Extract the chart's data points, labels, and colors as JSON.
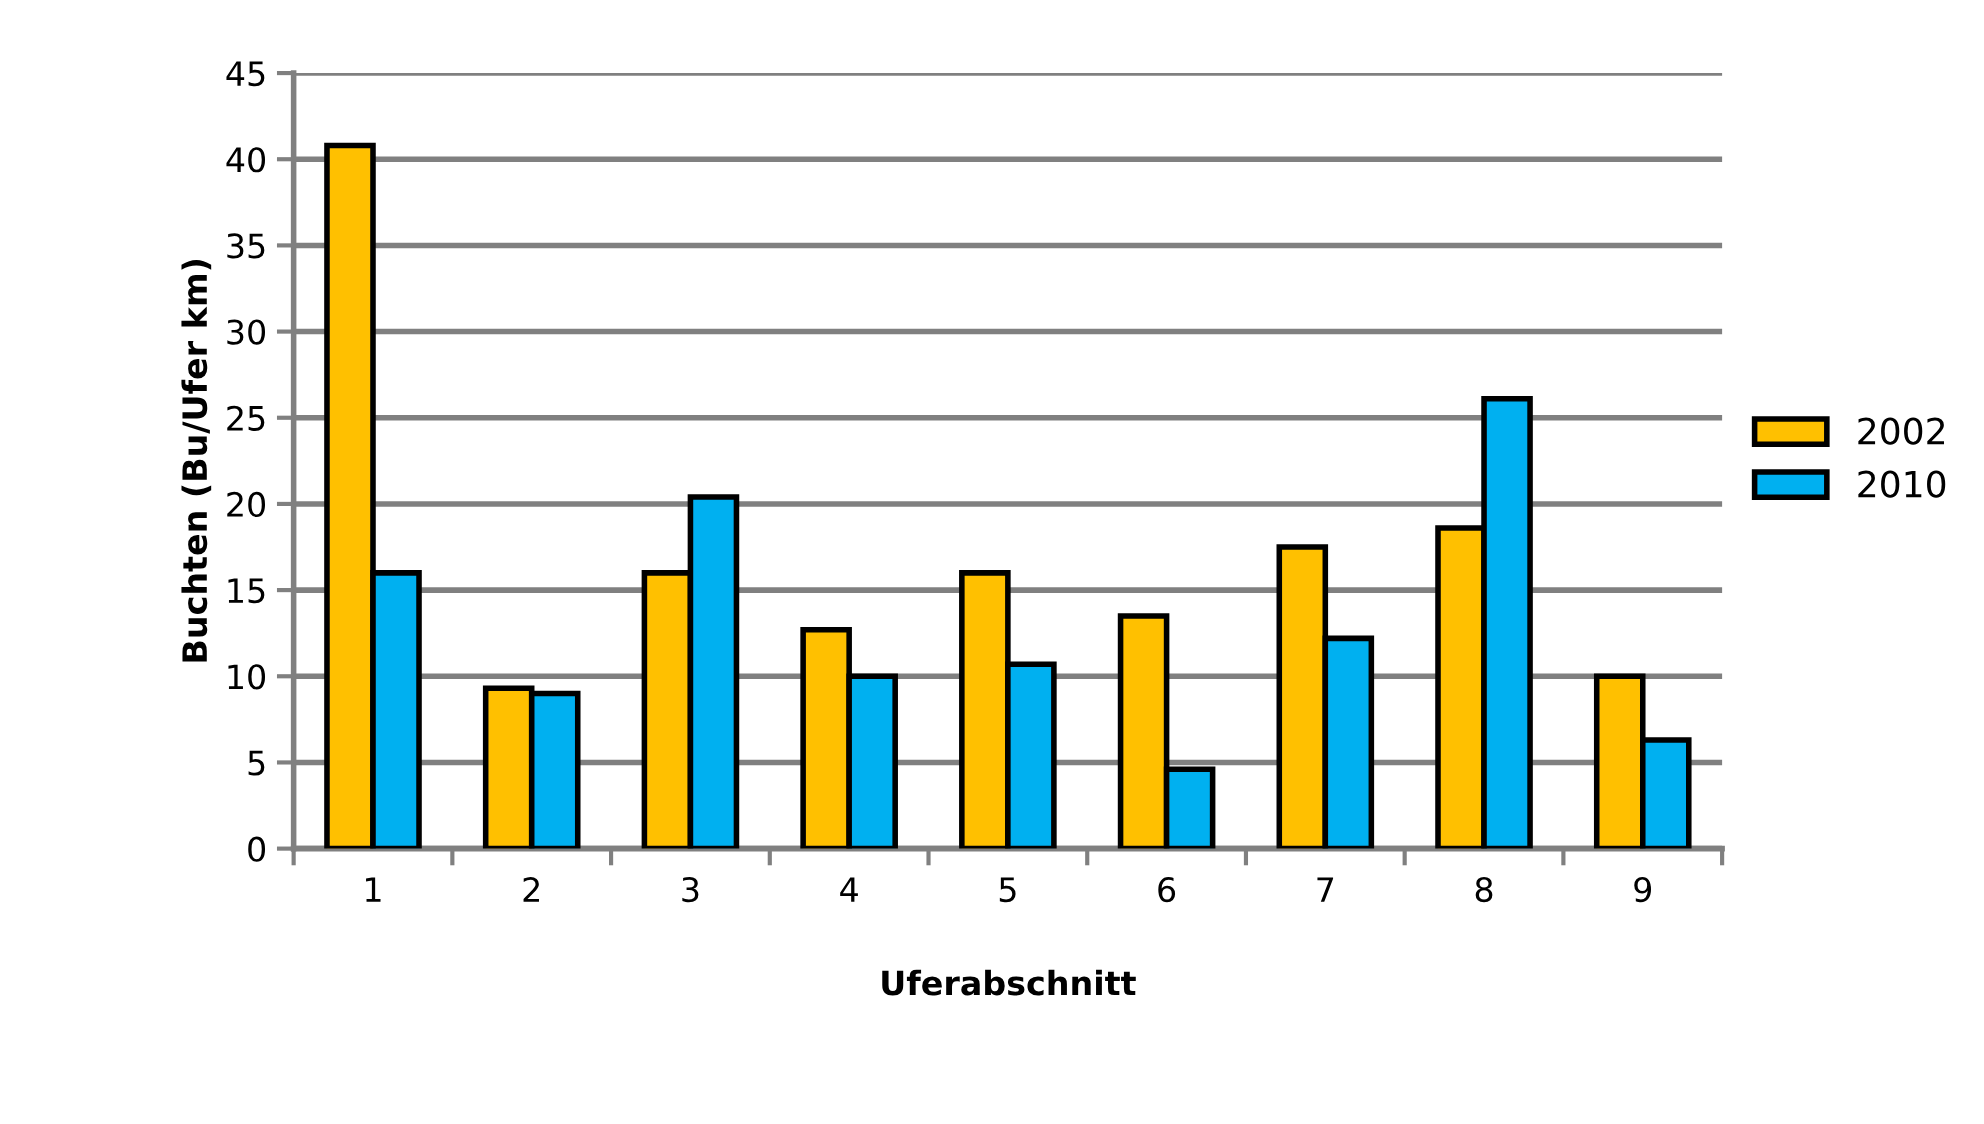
{
  "chart_data": {
    "type": "bar",
    "xlabel": "Uferabschnitt",
    "ylabel": "Buchten (Bu/Ufer km)",
    "categories": [
      "1",
      "2",
      "3",
      "4",
      "5",
      "6",
      "7",
      "8",
      "9"
    ],
    "series": [
      {
        "name": "2002",
        "color": "#ffc000",
        "values": [
          40.8,
          9.3,
          16,
          12.7,
          16,
          13.5,
          17.5,
          18.6,
          10
        ]
      },
      {
        "name": "2010",
        "color": "#00b0f0",
        "values": [
          16,
          9,
          20.4,
          10,
          10.7,
          4.6,
          12.2,
          26.1,
          6.3
        ]
      }
    ],
    "ylim": [
      0,
      45
    ],
    "yticks": [
      0,
      5,
      10,
      15,
      20,
      25,
      30,
      35,
      40,
      45
    ],
    "grid": "y",
    "legend": "right"
  }
}
